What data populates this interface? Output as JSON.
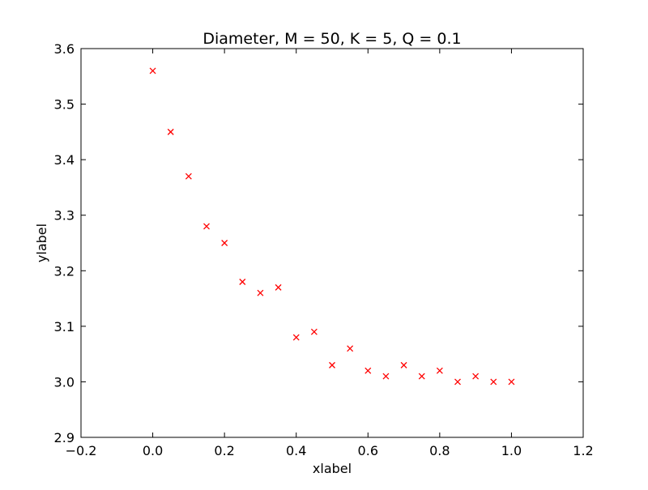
{
  "chart_data": {
    "type": "scatter",
    "title": "Diameter, M = 50, K = 5, Q = 0.1",
    "xlabel": "xlabel",
    "ylabel": "ylabel",
    "xlim": [
      -0.2,
      1.2
    ],
    "ylim": [
      2.9,
      3.6
    ],
    "xticks": [
      -0.2,
      0.0,
      0.2,
      0.4,
      0.6,
      0.8,
      1.0,
      1.2
    ],
    "yticks": [
      2.9,
      3.0,
      3.1,
      3.2,
      3.3,
      3.4,
      3.5,
      3.6
    ],
    "xtick_labels": [
      "−0.2",
      "0.0",
      "0.2",
      "0.4",
      "0.6",
      "0.8",
      "1.0",
      "1.2"
    ],
    "ytick_labels": [
      "2.9",
      "3.0",
      "3.1",
      "3.2",
      "3.3",
      "3.4",
      "3.5",
      "3.6"
    ],
    "grid": false,
    "marker": "x",
    "marker_color": "#ff0000",
    "series": [
      {
        "x": [
          0.0,
          0.05,
          0.1,
          0.15,
          0.2,
          0.25,
          0.3,
          0.35,
          0.4,
          0.45,
          0.5,
          0.55,
          0.6,
          0.65,
          0.7,
          0.75,
          0.8,
          0.85,
          0.9,
          0.95,
          1.0
        ],
        "y": [
          3.56,
          3.45,
          3.37,
          3.28,
          3.25,
          3.18,
          3.16,
          3.17,
          3.08,
          3.09,
          3.03,
          3.06,
          3.02,
          3.01,
          3.03,
          3.01,
          3.02,
          3.0,
          3.01,
          3.0,
          3.0
        ]
      }
    ]
  }
}
